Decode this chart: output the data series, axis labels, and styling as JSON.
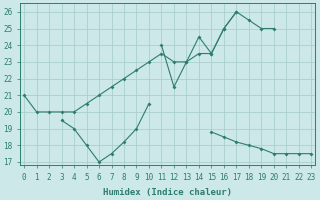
{
  "xlabel": "Humidex (Indice chaleur)",
  "x_values": [
    0,
    1,
    2,
    3,
    4,
    5,
    6,
    7,
    8,
    9,
    10,
    11,
    12,
    13,
    14,
    15,
    16,
    17,
    18,
    19,
    20,
    21,
    22,
    23
  ],
  "line1_y": [
    21.0,
    20.0,
    20.0,
    20.0,
    20.0,
    20.5,
    21.0,
    21.5,
    22.0,
    22.5,
    23.0,
    23.5,
    23.0,
    23.0,
    23.5,
    23.5,
    25.0,
    26.0,
    25.5,
    25.0,
    25.0,
    null,
    null,
    null
  ],
  "line2_y": [
    null,
    null,
    null,
    null,
    null,
    null,
    null,
    null,
    null,
    null,
    null,
    24.0,
    21.5,
    23.0,
    24.5,
    23.5,
    25.0,
    26.0,
    null,
    null,
    null,
    null,
    null,
    null
  ],
  "line3_y": [
    null,
    null,
    null,
    19.5,
    19.0,
    18.0,
    17.0,
    17.5,
    18.2,
    19.0,
    20.5,
    null,
    null,
    null,
    null,
    18.8,
    18.5,
    18.2,
    18.0,
    17.8,
    17.5,
    17.5,
    17.5,
    17.5
  ],
  "line_color": "#2e7d6e",
  "bg_color": "#cce8e8",
  "grid_color": "#aacece",
  "ylim": [
    16.8,
    26.5
  ],
  "xlim": [
    -0.3,
    23.3
  ],
  "yticks": [
    17,
    18,
    19,
    20,
    21,
    22,
    23,
    24,
    25,
    26
  ],
  "xticks": [
    0,
    1,
    2,
    3,
    4,
    5,
    6,
    7,
    8,
    9,
    10,
    11,
    12,
    13,
    14,
    15,
    16,
    17,
    18,
    19,
    20,
    21,
    22,
    23
  ]
}
